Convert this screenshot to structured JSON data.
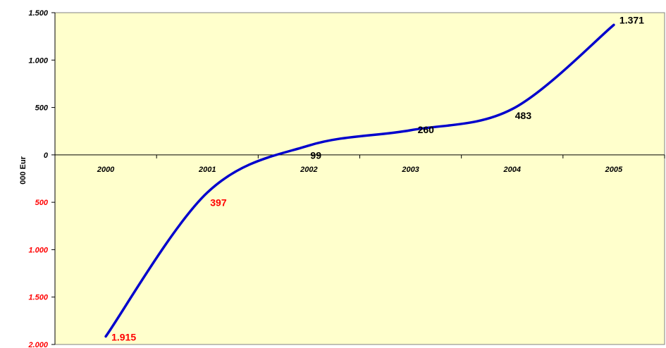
{
  "chart_data": {
    "type": "line",
    "title": "",
    "xlabel": "",
    "ylabel": "000 Eur",
    "categories": [
      "2000",
      "2001",
      "2002",
      "2003",
      "2004",
      "2005"
    ],
    "series": [
      {
        "values": [
          -1915,
          -397,
          99,
          260,
          483,
          1371
        ]
      }
    ],
    "data_labels": [
      "1.915",
      "397",
      "99",
      "260",
      "483",
      "1.371"
    ],
    "y_ticks": [
      {
        "value": 1500,
        "label": "1.500"
      },
      {
        "value": 1000,
        "label": "1.000"
      },
      {
        "value": 500,
        "label": "500"
      },
      {
        "value": 0,
        "label": "0"
      },
      {
        "value": -500,
        "label": "500"
      },
      {
        "value": -1000,
        "label": "1.000"
      },
      {
        "value": -1500,
        "label": "1.500"
      },
      {
        "value": -2000,
        "label": "2.000"
      }
    ],
    "ylim": [
      -2000,
      1500
    ],
    "grid": false,
    "colors": {
      "plot_background": "#ffffcc",
      "line": "#0000cc",
      "positive_text": "#000000",
      "negative_text": "#ff0000"
    }
  }
}
